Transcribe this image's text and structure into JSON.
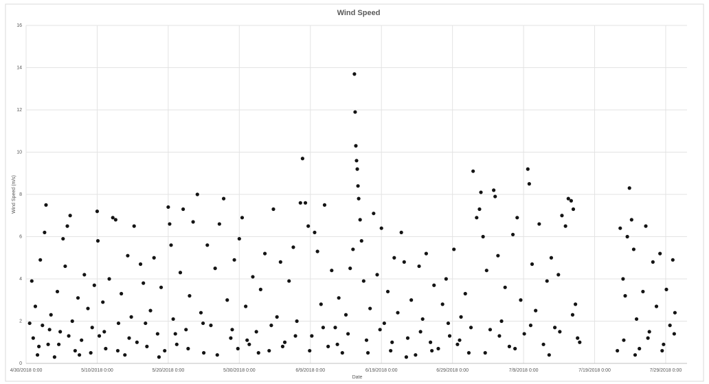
{
  "chart_data": {
    "type": "scatter",
    "title": "Wind Speed",
    "x_label": "Date",
    "y_label": "Wind Speed (m/s)",
    "color": "#141414",
    "grid": true,
    "xlim": [
      0,
      93
    ],
    "ylim": [
      0,
      16
    ],
    "xticks": [
      {
        "value": 0,
        "label": "4/30/2018 0:00"
      },
      {
        "value": 10,
        "label": "5/10/2018 0:00"
      },
      {
        "value": 20,
        "label": "5/20/2018 0:00"
      },
      {
        "value": 30,
        "label": "5/30/2018 0:00"
      },
      {
        "value": 40,
        "label": "6/9/2018 0:00"
      },
      {
        "value": 50,
        "label": "6/19/2018 0:00"
      },
      {
        "value": 60,
        "label": "6/29/2018 0:00"
      },
      {
        "value": 70,
        "label": "7/9/2018 0:00"
      },
      {
        "value": 80,
        "label": "7/19/2018 0:00"
      },
      {
        "value": 90,
        "label": "7/29/2018 0:00"
      }
    ],
    "yticks": [
      0,
      2,
      4,
      6,
      8,
      10,
      12,
      14,
      16
    ],
    "x": [
      0.8,
      1.0,
      1.3,
      1.6,
      2.0,
      2.3,
      2.6,
      2.8,
      3.1,
      3.5,
      4.0,
      4.4,
      4.8,
      5.2,
      5.5,
      5.8,
      6.2,
      6.5,
      6.9,
      7.3,
      7.8,
      8.2,
      8.7,
      9.1,
      9.6,
      10.0,
      10.1,
      10.3,
      10.8,
      11.2,
      11.7,
      12.2,
      12.6,
      13.0,
      13.4,
      13.9,
      14.3,
      14.8,
      15.2,
      15.6,
      16.1,
      16.5,
      17.0,
      17.5,
      18.0,
      18.5,
      19.0,
      19.5,
      20.0,
      20.2,
      20.4,
      20.7,
      21.2,
      21.7,
      22.1,
      22.5,
      23.0,
      23.5,
      24.1,
      24.6,
      25.0,
      25.5,
      26.0,
      26.6,
      27.2,
      27.8,
      28.3,
      28.8,
      29.3,
      29.8,
      30.0,
      30.4,
      30.9,
      31.4,
      31.9,
      32.4,
      33.0,
      33.6,
      34.2,
      34.8,
      35.3,
      35.8,
      36.4,
      37.0,
      37.6,
      38.1,
      38.6,
      38.9,
      39.3,
      39.7,
      40.2,
      40.6,
      41.0,
      41.5,
      42.0,
      42.5,
      43.0,
      43.5,
      44.0,
      44.5,
      45.0,
      45.6,
      46.0,
      46.2,
      46.3,
      46.4,
      46.5,
      46.6,
      46.7,
      46.8,
      47.0,
      47.2,
      47.5,
      47.9,
      48.4,
      48.9,
      49.4,
      50.0,
      50.4,
      50.9,
      51.3,
      51.8,
      52.3,
      52.8,
      53.2,
      53.7,
      54.2,
      54.8,
      55.3,
      55.8,
      56.3,
      56.9,
      57.4,
      58.0,
      58.6,
      59.1,
      59.6,
      60.2,
      60.7,
      61.2,
      61.8,
      62.3,
      62.9,
      63.4,
      63.8,
      64.0,
      64.3,
      64.8,
      65.3,
      65.8,
      66.0,
      66.4,
      66.9,
      67.4,
      68.0,
      68.5,
      69.1,
      69.6,
      70.1,
      70.6,
      70.8,
      71.2,
      71.7,
      72.2,
      72.8,
      73.3,
      73.9,
      74.4,
      74.9,
      75.4,
      75.9,
      76.3,
      76.7,
      77.0,
      77.3,
      77.6,
      83.2,
      83.6,
      84.0,
      84.3,
      84.6,
      84.9,
      85.2,
      85.5,
      85.9,
      86.3,
      86.8,
      87.2,
      87.7,
      88.2,
      88.7,
      89.2,
      89.7,
      90.1,
      90.6,
      91.0,
      91.3,
      0.5,
      1.8,
      3.3,
      4.6,
      6.0,
      7.5,
      9.3,
      11.0,
      12.9,
      14.5,
      16.8,
      18.7,
      21.0,
      22.8,
      24.9,
      26.9,
      29.0,
      31.1,
      32.7,
      34.5,
      36.1,
      37.9,
      39.9,
      41.8,
      43.8,
      45.3,
      48.1,
      49.8,
      51.5,
      53.5,
      55.5,
      57.1,
      59.4,
      61.0,
      62.6,
      64.6,
      66.6,
      68.8,
      71.0,
      73.6,
      75.1,
      76.9,
      77.9,
      84.1,
      85.7,
      87.5,
      89.5,
      91.2
    ],
    "values": [
      3.9,
      1.2,
      2.7,
      0.4,
      4.9,
      1.8,
      6.2,
      7.5,
      0.9,
      2.3,
      0.3,
      3.4,
      1.5,
      5.9,
      4.6,
      6.5,
      7.0,
      2.0,
      0.6,
      3.1,
      1.1,
      4.2,
      2.6,
      0.5,
      3.7,
      7.2,
      5.8,
      1.3,
      2.9,
      0.7,
      4.0,
      6.9,
      6.8,
      1.9,
      3.3,
      0.4,
      5.1,
      2.2,
      6.5,
      1.0,
      4.7,
      3.8,
      0.8,
      2.5,
      5.0,
      1.4,
      3.6,
      0.6,
      7.4,
      6.6,
      5.6,
      2.1,
      0.9,
      4.3,
      7.3,
      1.6,
      3.2,
      6.7,
      8.0,
      2.4,
      0.5,
      5.6,
      1.8,
      4.5,
      6.6,
      7.8,
      3.0,
      1.2,
      4.9,
      0.7,
      5.9,
      6.9,
      2.7,
      0.9,
      4.1,
      1.5,
      3.5,
      5.2,
      0.6,
      7.3,
      2.2,
      4.8,
      1.0,
      3.9,
      5.5,
      2.0,
      7.6,
      9.7,
      7.6,
      6.5,
      1.3,
      6.2,
      5.3,
      2.8,
      7.5,
      0.8,
      4.4,
      1.7,
      3.1,
      0.5,
      2.3,
      4.5,
      5.4,
      13.7,
      11.9,
      10.3,
      9.6,
      9.2,
      8.4,
      7.8,
      6.8,
      5.8,
      3.9,
      1.1,
      2.6,
      7.1,
      4.2,
      6.4,
      1.9,
      3.4,
      0.6,
      5.0,
      2.4,
      6.2,
      4.8,
      1.2,
      3.0,
      0.4,
      4.6,
      2.1,
      5.2,
      1.0,
      3.7,
      0.7,
      2.8,
      4.0,
      1.3,
      5.4,
      0.9,
      2.2,
      3.3,
      0.5,
      9.1,
      6.9,
      7.3,
      8.1,
      6.0,
      4.4,
      1.6,
      8.2,
      7.9,
      5.1,
      2.0,
      3.6,
      0.8,
      6.1,
      6.9,
      3.0,
      1.4,
      9.2,
      8.5,
      4.7,
      2.5,
      6.6,
      0.9,
      3.9,
      5.0,
      1.7,
      4.2,
      7.0,
      6.5,
      7.8,
      7.7,
      7.3,
      2.8,
      1.2,
      0.6,
      6.4,
      4.0,
      3.2,
      6.0,
      8.3,
      6.8,
      5.4,
      2.1,
      0.7,
      3.4,
      6.5,
      1.5,
      4.8,
      2.7,
      5.2,
      0.9,
      3.5,
      1.8,
      4.9,
      2.4,
      1.9,
      0.8,
      1.6,
      0.9,
      1.3,
      0.4,
      1.7,
      1.5,
      0.6,
      1.2,
      1.9,
      0.3,
      1.4,
      0.7,
      1.9,
      0.4,
      1.6,
      1.1,
      0.5,
      1.8,
      0.8,
      1.3,
      0.6,
      1.7,
      0.9,
      1.4,
      0.5,
      1.6,
      1.0,
      0.3,
      1.5,
      0.6,
      1.9,
      1.1,
      1.7,
      0.5,
      1.3,
      0.7,
      1.8,
      0.4,
      1.5,
      2.3,
      1.0,
      1.1,
      0.4,
      1.2,
      0.6,
      1.4
    ]
  }
}
